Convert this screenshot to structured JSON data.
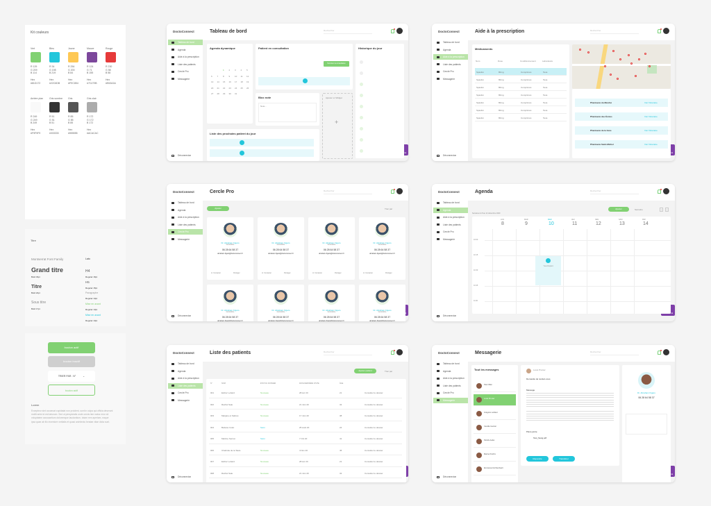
{
  "colors_kit": {
    "title": "Kit couleurs",
    "swatches": [
      {
        "name": "Vert",
        "hex": "#81D172",
        "rgb": "R 129\nG 209\nB 114",
        "hexlabel": "Hex\n#81D172"
      },
      {
        "name": "Bleu",
        "hex": "#22C6DB",
        "rgb": "R 34\nG 198\nB 219",
        "hexlabel": "Hex\n#22C6DB"
      },
      {
        "name": "Jaune",
        "hex": "#FEC854",
        "rgb": "R 254\nG 200\nB 84",
        "hexlabel": "Hex\n#FEC854"
      },
      {
        "name": "Mauve",
        "hex": "#7C479B",
        "rgb": "R 124\nG 71\nB 155",
        "hexlabel": "Hex\n#7C479B"
      },
      {
        "name": "Rouge",
        "hex": "#E63A3A",
        "rgb": "R 230\nG 58\nB 58",
        "hexlabel": "Hex\n#E63A3A"
      },
      {
        "name": "Arrière plan",
        "hex": "#F9F9F9",
        "rgb": "R 249\nG 249\nB 249",
        "hexlabel": "Hex\n#F9F9F9"
      },
      {
        "name": "Gris sombre",
        "hex": "#333333",
        "rgb": "R 51\nG 51\nB 51",
        "hexlabel": "Hex\n#333333"
      },
      {
        "name": "Gris",
        "hex": "#555555",
        "rgb": "R 85\nG 85\nB 85",
        "hexlabel": "Hex\n#555555"
      },
      {
        "name": "Gris clair",
        "hex": "#ACACAC",
        "rgb": "R 172\nG 172\nB 172",
        "hexlabel": "Hex\n#ACACAC"
      }
    ]
  },
  "font_kit": {
    "title": "Titre",
    "family": "Montserrat Font Family",
    "family2": "Lato",
    "big": "Grand titre",
    "big_sub": "Bold 33pt",
    "title_sub": "Bold 22pt",
    "subtitle": "Sous titre",
    "subtitle_sub": "Bold 17pt",
    "h4": "H4",
    "h4_sub": "Regular 16pt",
    "h5": "H5",
    "h5_sub": "Regular 15pt",
    "para": "Paragraphe",
    "para_sub": "Regular 13pt",
    "hl_green": "Mise en avant",
    "hl_green_sub": "Regular 13pt",
    "hl_blue": "Mise en avant",
    "hl_blue_sub": "Regular 13pt"
  },
  "buttons_kit": {
    "active": "bouton actif",
    "inactive": "bouton inactif",
    "sort": "TRIER PAR : N°",
    "outline": "bouton actif",
    "lorem_title": "Lorem",
    "lorem": "Excepteur sint occaecat cupidatat non proident, sunt in culpa qui officia deserunt mollit anim id est laborum. Sed ut perspiciatis unde omnis iste natus error sit voluptatem accusantium doloremque laudantium, totam rem aperiam, eaque ipsa quae ab illo inventore veritatis et quasi architecto beatae vitae dicta sunt."
  },
  "app": {
    "logo": "DoctoConnect",
    "search": "Rechercher",
    "logout": "Déconnexion",
    "mic": "Mode vocal",
    "nav": [
      "Tableau de bord",
      "Agenda",
      "Aide à la prescription",
      "Liste des patients",
      "Cercle Pro",
      "Messagerie"
    ]
  },
  "screens": {
    "dashboard": {
      "title": "Tableau de bord",
      "agenda": "Agenda dynamique",
      "consult": "Patient en consultation",
      "history": "Historique du jour",
      "note": "Bloc note",
      "note_ph": "Note...",
      "widget": "Ajouter un Widget",
      "next": "Liste des prochains patient du jour",
      "consult_btn": "Terminer la consultation"
    },
    "prescription": {
      "title": "Aide à la prescription",
      "meds": "Médicaments",
      "cols": [
        "Nom",
        "Dose",
        "Conditionnement",
        "Laboratoire"
      ],
      "rows": [
        [
          "Spasfon",
          "80mg",
          "Comprimés",
          "Teva"
        ],
        [
          "Spasfon",
          "80mg",
          "Comprimés",
          "Teva"
        ],
        [
          "Spasfon",
          "80mg",
          "Comprimés",
          "Teva"
        ],
        [
          "Spasfon",
          "80mg",
          "Comprimés",
          "Teva"
        ],
        [
          "Spasfon",
          "80mg",
          "Comprimés",
          "Teva"
        ],
        [
          "Spasfon",
          "80mg",
          "Comprimés",
          "Teva"
        ],
        [
          "Spasfon",
          "80mg",
          "Comprimés",
          "Teva"
        ]
      ],
      "pharmacies": [
        "Pharmacie du Marché",
        "Pharmacie des Écoles",
        "Pharmacie de la Gare",
        "Pharmacie Saint-Michel"
      ],
      "link": "Voir l'itinéraire"
    },
    "cercle": {
      "title": "Cercle Pro",
      "add": "Ajouter",
      "sort": "Trier par",
      "name": "Dr. Abraham Figaro",
      "role": "Généraliste",
      "phone": "06 28 64 58 37",
      "email": "abraham.figaro@doctoconnect.fr",
      "msg": "Contacter",
      "share": "Partager"
    },
    "agenda": {
      "title": "Agenda",
      "add": "Ajouter",
      "range": "Semaine",
      "date": "Semaine du 8 au 14 décembre 2020",
      "days": [
        [
          "LUN",
          "8"
        ],
        [
          "MAR",
          "9"
        ],
        [
          "MER",
          "10"
        ],
        [
          "JEU",
          "11"
        ],
        [
          "VEN",
          "12"
        ],
        [
          "SAM",
          "13"
        ],
        [
          "DIM",
          "14"
        ]
      ],
      "times": [
        "10:00",
        "10:15",
        "10:30",
        "10:45",
        "11:00"
      ],
      "event": "Yves Dupont"
    },
    "patients": {
      "title": "Liste des patients",
      "add": "Ajouter patient",
      "sort": "Trier par",
      "cols": [
        "N°",
        "NOM",
        "ÉTAT DU DOSSIER",
        "DATE DERNIÈRE VISITE",
        "ÂGE",
        ""
      ],
      "rows": [
        [
          "001",
          "Esther Lebard",
          "Nouveau",
          "28 Avr 20",
          "21",
          "Consulter le dossier"
        ],
        [
          "002",
          "Rachel Sale",
          "Nouveau",
          "21 Juin 20",
          "32",
          "Consulter le dossier"
        ],
        [
          "003",
          "Marjane et Sabres",
          "Nouveau",
          "17 Juin 20",
          "38",
          "Consulter le dossier"
        ],
        [
          "004",
          "Bettane Colet",
          "Suivi",
          "25 Août 20",
          "24",
          "Consulter le dossier"
        ],
        [
          "005",
          "Martine Sernat",
          "Suivi",
          "7 Oct 20",
          "41",
          "Consulter le dossier"
        ],
        [
          "006",
          "Charlotte de la Taule",
          "Nouveau",
          "4 Nov 20",
          "45",
          "Consulter le dossier"
        ],
        [
          "007",
          "Esther Lebard",
          "Nouveau",
          "28 Avr 20",
          "21",
          "Consulter le dossier"
        ],
        [
          "008",
          "Rachel Sale",
          "Nouveau",
          "21 Juin 20",
          "32",
          "Consulter le dossier"
        ]
      ]
    },
    "messagerie": {
      "title": "Messagerie",
      "all": "Tout les messages",
      "contacts": [
        "Paul Ollier",
        "Louis Prunier",
        "Grégoire Leblanc",
        "Camille Garnier",
        "Patrick Audet",
        "Marine Perdrix",
        "Emmanuel Archambault"
      ],
      "sender": "Louis Prunier",
      "subject": "Demande de rendez-vous",
      "msg_label": "Message",
      "attach_label": "Pièce jointe",
      "attach": "Test_Sang.pdf",
      "reply": "Répondre",
      "transfer": "Transférer",
      "profile": "Dr. Abraham Figaro",
      "phone": "06 28 64 58 37"
    }
  }
}
